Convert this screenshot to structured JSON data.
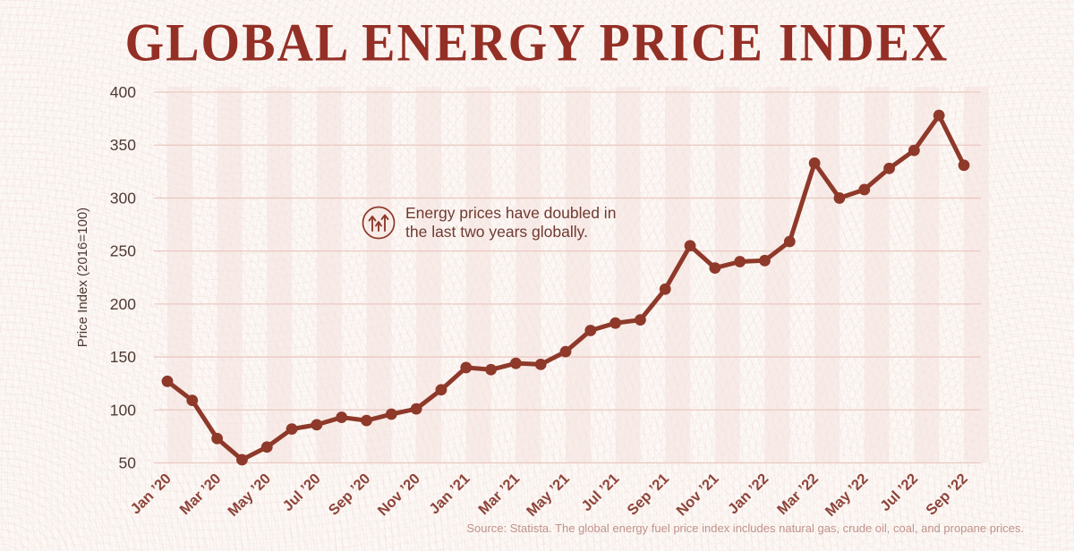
{
  "page_title": "GLOBAL ENERGY PRICE INDEX",
  "annotation": {
    "icon": "rising-arrows-icon",
    "line1": "Energy prices have doubled in",
    "line2": "the last two years globally."
  },
  "source_note": "Source: Statista. The global energy fuel price index includes natural gas, crude oil, coal, and propane prices.",
  "colors": {
    "background": "#fcf8f5",
    "title": "#942f26",
    "line": "#8e392a",
    "gridline": "#eac9c2",
    "month_stripe": "#f4e2de",
    "y_tick_text": "#4e3a34",
    "x_tick_text": "#8d443a",
    "annotation_text": "#6f3a31",
    "source_text": "#bf938b"
  },
  "chart_data": {
    "type": "line",
    "title": "GLOBAL ENERGY PRICE INDEX",
    "xlabel": "",
    "ylabel": "Price Index (2016=100)",
    "ylim": [
      50,
      400
    ],
    "yticks": [
      50,
      100,
      150,
      200,
      250,
      300,
      350,
      400
    ],
    "grid": "horizontal",
    "legend": "none",
    "marker": "circle",
    "x": [
      "Jan ’20",
      "Feb ’20",
      "Mar ’20",
      "Apr ’20",
      "May ’20",
      "Jun ’20",
      "Jul ’20",
      "Aug ’20",
      "Sep ’20",
      "Oct ’20",
      "Nov ’20",
      "Dec ’20",
      "Jan ’21",
      "Feb ’21",
      "Mar ’21",
      "Apr ’21",
      "May ’21",
      "Jun ’21",
      "Jul ’21",
      "Aug ’21",
      "Sep ’21",
      "Oct ’21",
      "Nov ’21",
      "Dec ’21",
      "Jan ’22",
      "Feb ’22",
      "Mar ’22",
      "Apr ’22",
      "May ’22",
      "Jun ’22",
      "Jul ’22",
      "Aug ’22",
      "Sep ’22"
    ],
    "x_tick_labels": [
      "Jan ’20",
      "Mar ’20",
      "May ’20",
      "Jul ’20",
      "Sep ’20",
      "Nov ’20",
      "Jan ’21",
      "Mar ’21",
      "May ’21",
      "Jul ’21",
      "Sep ’21",
      "Nov ’21",
      "Jan ’22",
      "Mar ’22",
      "May ’22",
      "Jul ’22",
      "Sep ’22"
    ],
    "values": [
      127,
      109,
      73,
      53,
      65,
      82,
      86,
      93,
      90,
      96,
      101,
      119,
      140,
      138,
      144,
      143,
      155,
      175,
      182,
      185,
      214,
      255,
      234,
      240,
      241,
      259,
      333,
      300,
      308,
      328,
      345,
      378,
      331
    ]
  }
}
